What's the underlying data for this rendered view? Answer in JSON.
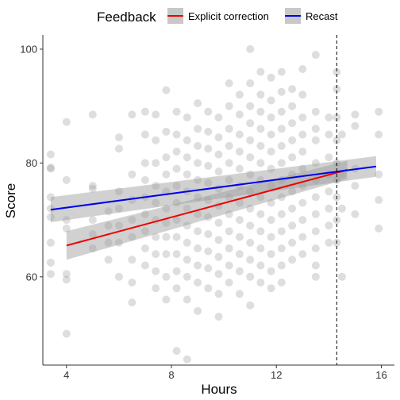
{
  "chart_data": {
    "type": "scatter",
    "title": "",
    "xlabel": "Hours",
    "ylabel": "Score",
    "xlim": [
      3.1,
      16.5
    ],
    "ylim": [
      44.5,
      102.5
    ],
    "xticks": [
      4,
      8,
      12,
      16
    ],
    "yticks": [
      60,
      80,
      100
    ],
    "grid": false,
    "legend": {
      "title": "Feedback",
      "placement": "top",
      "entries": [
        "Explicit correction",
        "Recast"
      ]
    },
    "reference_line": {
      "x": 14.3,
      "style": "dashed"
    },
    "colors": {
      "points": "#999999",
      "explicit": "#ee0000",
      "recast": "#0000ee",
      "band": "#999999",
      "axis": "#333333",
      "text": "#000000"
    },
    "fit_lines": [
      {
        "name": "Explicit correction",
        "x": [
          4.0,
          14.7
        ],
        "y": [
          65.5,
          78.8
        ],
        "ci_low": [
          63.0,
          77.2
        ],
        "ci_high": [
          68.0,
          80.4
        ]
      },
      {
        "name": "Recast",
        "x": [
          3.4,
          15.8
        ],
        "y": [
          71.8,
          79.4
        ],
        "ci_low": [
          69.6,
          77.6
        ],
        "ci_high": [
          74.0,
          81.2
        ]
      }
    ],
    "points": [
      [
        3.4,
        79
      ],
      [
        3.4,
        81.5
      ],
      [
        3.4,
        79.2
      ],
      [
        3.4,
        72
      ],
      [
        3.4,
        66
      ],
      [
        3.4,
        62.5
      ],
      [
        3.4,
        60.5
      ],
      [
        3.4,
        70.5
      ],
      [
        3.4,
        74
      ],
      [
        4.0,
        87.2
      ],
      [
        4.0,
        77
      ],
      [
        4.0,
        68.5
      ],
      [
        4.0,
        60.5
      ],
      [
        4.0,
        59.5
      ],
      [
        4.0,
        50
      ],
      [
        4.0,
        70
      ],
      [
        5.0,
        88.5
      ],
      [
        5.0,
        76
      ],
      [
        5.0,
        75.5
      ],
      [
        5.0,
        70
      ],
      [
        5.0,
        67.5
      ],
      [
        5.0,
        65
      ],
      [
        5.6,
        71.5
      ],
      [
        5.6,
        69
      ],
      [
        5.6,
        66
      ],
      [
        5.6,
        63
      ],
      [
        6.0,
        84.5
      ],
      [
        6.0,
        82.5
      ],
      [
        6.0,
        75
      ],
      [
        6.0,
        72
      ],
      [
        6.0,
        69
      ],
      [
        6.0,
        66
      ],
      [
        6.0,
        60
      ],
      [
        6.5,
        88.5
      ],
      [
        6.5,
        78
      ],
      [
        6.5,
        73.5
      ],
      [
        6.5,
        70
      ],
      [
        6.5,
        67
      ],
      [
        6.5,
        63
      ],
      [
        6.5,
        59
      ],
      [
        6.5,
        55.5
      ],
      [
        7.0,
        89
      ],
      [
        7.0,
        85
      ],
      [
        7.0,
        80
      ],
      [
        7.0,
        77
      ],
      [
        7.0,
        74
      ],
      [
        7.0,
        71
      ],
      [
        7.0,
        68
      ],
      [
        7.0,
        65
      ],
      [
        7.0,
        62
      ],
      [
        7.4,
        88.5
      ],
      [
        7.4,
        84
      ],
      [
        7.4,
        80
      ],
      [
        7.4,
        76
      ],
      [
        7.4,
        73
      ],
      [
        7.4,
        70
      ],
      [
        7.4,
        67
      ],
      [
        7.4,
        64
      ],
      [
        7.4,
        61
      ],
      [
        7.4,
        58
      ],
      [
        7.8,
        92.8
      ],
      [
        7.8,
        85.5
      ],
      [
        7.8,
        81
      ],
      [
        7.8,
        78
      ],
      [
        7.8,
        75
      ],
      [
        7.8,
        72
      ],
      [
        7.8,
        69.5
      ],
      [
        7.8,
        67
      ],
      [
        7.8,
        64
      ],
      [
        7.8,
        60
      ],
      [
        7.8,
        56
      ],
      [
        8.2,
        89
      ],
      [
        8.2,
        85
      ],
      [
        8.2,
        82
      ],
      [
        8.2,
        79
      ],
      [
        8.2,
        76
      ],
      [
        8.2,
        73
      ],
      [
        8.2,
        70
      ],
      [
        8.2,
        67
      ],
      [
        8.2,
        64
      ],
      [
        8.2,
        61
      ],
      [
        8.2,
        58
      ],
      [
        8.2,
        47
      ],
      [
        8.6,
        88
      ],
      [
        8.6,
        84
      ],
      [
        8.6,
        81
      ],
      [
        8.6,
        78
      ],
      [
        8.6,
        75
      ],
      [
        8.6,
        72
      ],
      [
        8.6,
        69
      ],
      [
        8.6,
        66
      ],
      [
        8.6,
        63
      ],
      [
        8.6,
        60
      ],
      [
        8.6,
        56
      ],
      [
        8.6,
        45.5
      ],
      [
        9.0,
        90.5
      ],
      [
        9.0,
        86
      ],
      [
        9.0,
        83
      ],
      [
        9.0,
        80
      ],
      [
        9.0,
        77
      ],
      [
        9.0,
        74
      ],
      [
        9.0,
        71
      ],
      [
        9.0,
        68
      ],
      [
        9.0,
        65
      ],
      [
        9.0,
        62
      ],
      [
        9.0,
        59
      ],
      [
        9.0,
        54
      ],
      [
        9.4,
        89
      ],
      [
        9.4,
        85.5
      ],
      [
        9.4,
        82.5
      ],
      [
        9.4,
        79.5
      ],
      [
        9.4,
        76.5
      ],
      [
        9.4,
        73.5
      ],
      [
        9.4,
        70.5
      ],
      [
        9.4,
        67.5
      ],
      [
        9.4,
        64.5
      ],
      [
        9.4,
        61.5
      ],
      [
        9.4,
        58
      ],
      [
        9.8,
        88
      ],
      [
        9.8,
        84.5
      ],
      [
        9.8,
        81.5
      ],
      [
        9.8,
        78.5
      ],
      [
        9.8,
        75.5
      ],
      [
        9.8,
        72.5
      ],
      [
        9.8,
        69.5
      ],
      [
        9.8,
        66.5
      ],
      [
        9.8,
        63.5
      ],
      [
        9.8,
        60.5
      ],
      [
        9.8,
        57
      ],
      [
        9.8,
        53
      ],
      [
        10.2,
        94
      ],
      [
        10.2,
        90
      ],
      [
        10.2,
        86
      ],
      [
        10.2,
        83
      ],
      [
        10.2,
        80
      ],
      [
        10.2,
        77
      ],
      [
        10.2,
        74
      ],
      [
        10.2,
        71
      ],
      [
        10.2,
        68
      ],
      [
        10.2,
        65
      ],
      [
        10.2,
        62
      ],
      [
        10.2,
        59
      ],
      [
        10.6,
        92
      ],
      [
        10.6,
        88.5
      ],
      [
        10.6,
        85
      ],
      [
        10.6,
        82
      ],
      [
        10.6,
        79
      ],
      [
        10.6,
        76
      ],
      [
        10.6,
        73
      ],
      [
        10.6,
        70
      ],
      [
        10.6,
        67
      ],
      [
        10.6,
        64
      ],
      [
        10.6,
        61
      ],
      [
        10.6,
        57
      ],
      [
        11.0,
        100
      ],
      [
        11.0,
        94
      ],
      [
        11.0,
        90
      ],
      [
        11.0,
        87
      ],
      [
        11.0,
        84
      ],
      [
        11.0,
        81
      ],
      [
        11.0,
        78
      ],
      [
        11.0,
        75
      ],
      [
        11.0,
        72
      ],
      [
        11.0,
        69
      ],
      [
        11.0,
        66
      ],
      [
        11.0,
        63
      ],
      [
        11.0,
        60
      ],
      [
        11.0,
        55
      ],
      [
        11.4,
        96
      ],
      [
        11.4,
        92
      ],
      [
        11.4,
        89
      ],
      [
        11.4,
        86
      ],
      [
        11.4,
        83
      ],
      [
        11.4,
        80
      ],
      [
        11.4,
        77
      ],
      [
        11.4,
        74
      ],
      [
        11.4,
        71
      ],
      [
        11.4,
        68
      ],
      [
        11.4,
        65
      ],
      [
        11.4,
        62
      ],
      [
        11.4,
        59
      ],
      [
        11.8,
        95
      ],
      [
        11.8,
        91
      ],
      [
        11.8,
        88
      ],
      [
        11.8,
        85
      ],
      [
        11.8,
        82
      ],
      [
        11.8,
        79
      ],
      [
        11.8,
        76
      ],
      [
        11.8,
        73
      ],
      [
        11.8,
        70
      ],
      [
        11.8,
        67
      ],
      [
        11.8,
        64
      ],
      [
        11.8,
        61
      ],
      [
        11.8,
        58
      ],
      [
        12.2,
        96
      ],
      [
        12.2,
        92.5
      ],
      [
        12.2,
        89
      ],
      [
        12.2,
        86
      ],
      [
        12.2,
        83
      ],
      [
        12.2,
        80
      ],
      [
        12.2,
        77
      ],
      [
        12.2,
        74
      ],
      [
        12.2,
        71
      ],
      [
        12.2,
        68
      ],
      [
        12.2,
        65
      ],
      [
        12.2,
        62
      ],
      [
        12.2,
        59
      ],
      [
        12.6,
        93
      ],
      [
        12.6,
        90
      ],
      [
        12.6,
        87
      ],
      [
        12.6,
        84
      ],
      [
        12.6,
        81
      ],
      [
        12.6,
        78
      ],
      [
        12.6,
        75
      ],
      [
        12.6,
        72
      ],
      [
        12.6,
        69
      ],
      [
        12.6,
        66
      ],
      [
        12.6,
        63
      ],
      [
        13.0,
        96.5
      ],
      [
        13.0,
        92
      ],
      [
        13.0,
        88
      ],
      [
        13.0,
        85
      ],
      [
        13.0,
        82
      ],
      [
        13.0,
        79
      ],
      [
        13.0,
        76
      ],
      [
        13.0,
        73
      ],
      [
        13.0,
        70
      ],
      [
        13.0,
        67
      ],
      [
        13.0,
        64
      ],
      [
        13.5,
        99
      ],
      [
        13.5,
        89
      ],
      [
        13.5,
        86
      ],
      [
        13.5,
        84
      ],
      [
        13.5,
        80
      ],
      [
        13.5,
        77
      ],
      [
        13.5,
        74
      ],
      [
        13.5,
        71
      ],
      [
        13.5,
        68
      ],
      [
        13.5,
        65
      ],
      [
        13.5,
        62
      ],
      [
        13.5,
        60
      ],
      [
        14.0,
        88
      ],
      [
        14.0,
        85
      ],
      [
        14.0,
        81
      ],
      [
        14.0,
        78
      ],
      [
        14.0,
        75
      ],
      [
        14.0,
        72
      ],
      [
        14.0,
        69
      ],
      [
        14.0,
        66
      ],
      [
        14.3,
        96
      ],
      [
        14.3,
        93
      ],
      [
        14.3,
        88
      ],
      [
        14.3,
        84
      ],
      [
        14.3,
        80
      ],
      [
        14.3,
        77
      ],
      [
        14.3,
        74
      ],
      [
        14.3,
        70
      ],
      [
        14.3,
        66
      ],
      [
        14.5,
        85
      ],
      [
        14.5,
        78
      ],
      [
        14.5,
        72
      ],
      [
        14.5,
        60
      ],
      [
        15.0,
        88.5
      ],
      [
        15.0,
        86.5
      ],
      [
        15.0,
        79
      ],
      [
        15.0,
        76
      ],
      [
        15.0,
        71
      ],
      [
        15.9,
        89
      ],
      [
        15.9,
        85
      ],
      [
        15.9,
        78
      ],
      [
        15.9,
        73.5
      ],
      [
        15.9,
        68.5
      ]
    ]
  }
}
